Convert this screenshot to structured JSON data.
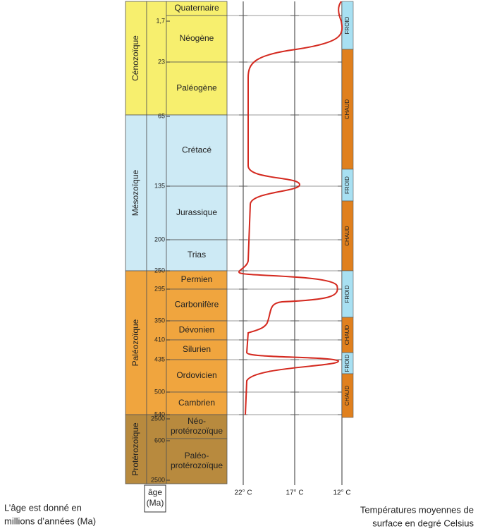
{
  "eras": [
    "Cénozoïque",
    "Mésozoïque",
    "Paléozoïque",
    "Protérozoïque"
  ],
  "periods": [
    [
      "Quaternaire"
    ],
    [
      "Néogène"
    ],
    [
      "Paléogène"
    ],
    [
      "Crétacé"
    ],
    [
      "Jurassique"
    ],
    [
      "Trias"
    ],
    [
      "Permien"
    ],
    [
      "Carbonifère"
    ],
    [
      "Dévonien"
    ],
    [
      "Silurien"
    ],
    [
      "Ordovicien"
    ],
    [
      "Cambrien"
    ],
    [
      "Néo-",
      "protérozoïque"
    ],
    [
      "Paléo-",
      "protérozoïque"
    ]
  ],
  "ages": [
    "1,7",
    "23",
    "65",
    "135",
    "200",
    "250",
    "295",
    "350",
    "410",
    "435",
    "500",
    "540",
    "2500",
    "600",
    "2500"
  ],
  "age_header": [
    "âge",
    "(Ma)"
  ],
  "temperatures": [
    "22° C",
    "17° C",
    "12° C"
  ],
  "climates": [
    "FROID",
    "CHAUD",
    "FROID",
    "CHAUD",
    "FROID",
    "CHAUD",
    "FROID",
    "CHAUD"
  ],
  "notes": {
    "age": [
      "L’âge est donné en",
      "millions d’années (Ma)"
    ],
    "temperature": [
      "Températures moyennes de",
      "surface en degré Celsius"
    ]
  }
}
